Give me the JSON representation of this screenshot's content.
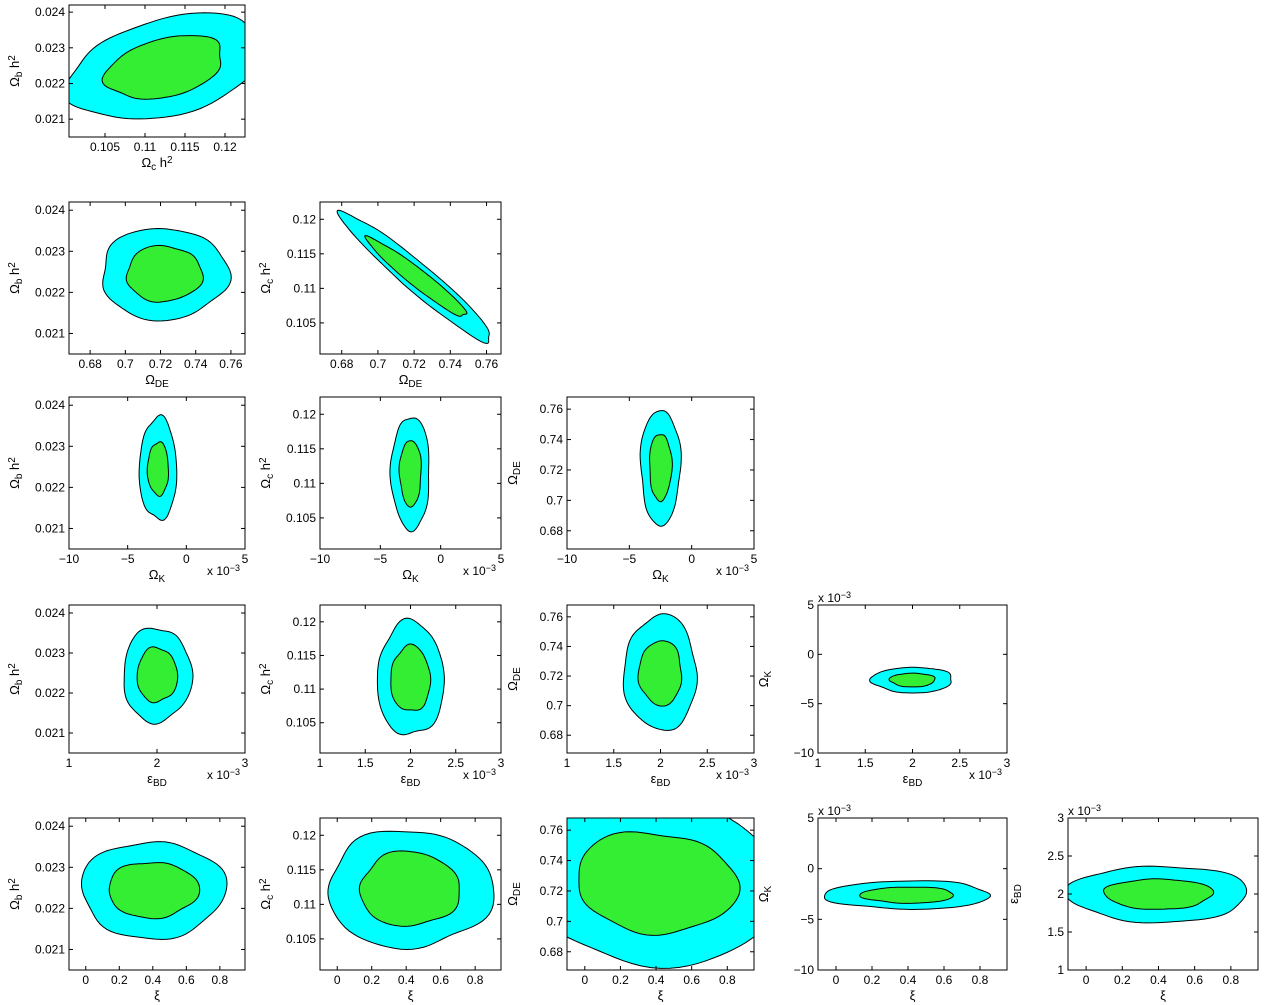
{
  "colors": {
    "outer": "#00ffff",
    "inner": "#33ee33",
    "stroke": "#000000",
    "background": "#ffffff"
  },
  "parameters": {
    "omega_b_h2": {
      "symbol": "Ω",
      "sub": "b",
      "sup": "2",
      "trail": " h",
      "range": [
        0.0205,
        0.0242
      ],
      "ticks": [
        0.021,
        0.022,
        0.023,
        0.024
      ],
      "tick_labels": [
        "0.021",
        "0.022",
        "0.023",
        "0.024"
      ]
    },
    "omega_c_h2": {
      "symbol": "Ω",
      "sub": "c",
      "sup": "2",
      "trail": " h",
      "range": [
        0.1005,
        0.1225
      ],
      "ticks": [
        0.105,
        0.11,
        0.115,
        0.12
      ],
      "tick_labels": [
        "0.105",
        "0.11",
        "0.115",
        "0.12"
      ]
    },
    "omega_de": {
      "symbol": "Ω",
      "sub": "DE",
      "sup": "",
      "trail": "",
      "range": [
        0.668,
        0.768
      ],
      "ticks": [
        0.68,
        0.7,
        0.72,
        0.74,
        0.76
      ],
      "tick_labels": [
        "0.68",
        "0.7",
        "0.72",
        "0.74",
        "0.76"
      ]
    },
    "omega_k": {
      "symbol": "Ω",
      "sub": "K",
      "sup": "",
      "trail": "",
      "range": [
        -0.01,
        0.005
      ],
      "ticks": [
        -0.01,
        -0.005,
        0,
        0.005
      ],
      "tick_labels": [
        "−10",
        "−5",
        "0",
        "5"
      ],
      "multiplier": "x 10",
      "multiplier_exp": "−3"
    },
    "eps_bd": {
      "symbol": "ε",
      "sub": "BD",
      "sup": "",
      "trail": "",
      "range": [
        0.001,
        0.003
      ],
      "ticks": [
        0.001,
        0.0015,
        0.002,
        0.0025,
        0.003
      ],
      "tick_labels": [
        "1",
        "1.5",
        "2",
        "2.5",
        "3"
      ],
      "tick_labels_short": [
        "1",
        "2",
        "3"
      ],
      "ticks_short": [
        0.001,
        0.002,
        0.003
      ],
      "multiplier": "x 10",
      "multiplier_exp": "−3"
    },
    "xi": {
      "symbol": "ξ",
      "sub": "",
      "sup": "",
      "trail": "",
      "range": [
        -0.1,
        0.95
      ],
      "ticks": [
        0,
        0.2,
        0.4,
        0.6,
        0.8
      ],
      "tick_labels": [
        "0",
        "0.2",
        "0.4",
        "0.6",
        "0.8"
      ]
    }
  },
  "chart_data": [
    {
      "type": "contour",
      "x": "omega_c_h2",
      "y": "omega_b_h2",
      "center": [
        0.1125,
        0.02245
      ],
      "outer_radii": [
        0.0085,
        0.00105
      ],
      "inner_radii": [
        0.0052,
        0.00063
      ],
      "correlation": 0.35
    },
    {
      "type": "contour",
      "x": "omega_de",
      "y": "omega_b_h2",
      "center": [
        0.722,
        0.02245
      ],
      "outer_radii": [
        0.036,
        0.00112
      ],
      "inner_radii": [
        0.0215,
        0.00068
      ],
      "correlation": 0.0
    },
    {
      "type": "contour",
      "x": "omega_de",
      "y": "omega_c_h2",
      "center": [
        0.722,
        0.1115
      ],
      "outer_radii": [
        0.038,
        0.0085
      ],
      "inner_radii": [
        0.025,
        0.0052
      ],
      "correlation": -0.96
    },
    {
      "type": "contour",
      "x": "omega_k",
      "y": "omega_b_h2",
      "center": [
        -0.0024,
        0.02245
      ],
      "outer_radii": [
        0.0016,
        0.00125
      ],
      "inner_radii": [
        0.0009,
        0.00065
      ],
      "correlation": 0.0
    },
    {
      "type": "contour",
      "x": "omega_k",
      "y": "omega_c_h2",
      "center": [
        -0.0025,
        0.1115
      ],
      "outer_radii": [
        0.0016,
        0.0082
      ],
      "inner_radii": [
        0.0009,
        0.0048
      ],
      "correlation": 0.0
    },
    {
      "type": "contour",
      "x": "omega_k",
      "y": "omega_de",
      "center": [
        -0.0025,
        0.722
      ],
      "outer_radii": [
        0.0016,
        0.038
      ],
      "inner_radii": [
        0.0009,
        0.022
      ],
      "correlation": 0.0
    },
    {
      "type": "contour",
      "x": "eps_bd",
      "y": "omega_b_h2",
      "center": [
        0.002,
        0.02245
      ],
      "outer_radii": [
        0.00039,
        0.00118
      ],
      "inner_radii": [
        0.00023,
        0.00068
      ],
      "correlation": 0.0
    },
    {
      "type": "contour",
      "x": "eps_bd",
      "y": "omega_c_h2",
      "center": [
        0.002,
        0.1115
      ],
      "outer_radii": [
        0.00037,
        0.0085
      ],
      "inner_radii": [
        0.00022,
        0.0049
      ],
      "correlation": 0.0
    },
    {
      "type": "contour",
      "x": "eps_bd",
      "y": "omega_de",
      "center": [
        0.002,
        0.722
      ],
      "outer_radii": [
        0.00039,
        0.039
      ],
      "inner_radii": [
        0.00023,
        0.022
      ],
      "correlation": 0.0
    },
    {
      "type": "contour",
      "x": "eps_bd",
      "y": "omega_k",
      "center": [
        0.002,
        -0.0026
      ],
      "outer_radii": [
        0.00043,
        0.0013
      ],
      "inner_radii": [
        0.00024,
        0.0007
      ],
      "correlation": 0.0
    },
    {
      "type": "contour",
      "x": "xi",
      "y": "omega_b_h2",
      "center": [
        0.4,
        0.02245
      ],
      "outer_radii": [
        0.43,
        0.00118
      ],
      "inner_radii": [
        0.27,
        0.00068
      ],
      "correlation": 0.0
    },
    {
      "type": "contour",
      "x": "xi",
      "y": "omega_c_h2",
      "center": [
        0.42,
        0.1122
      ],
      "outer_radii": [
        0.48,
        0.0085
      ],
      "inner_radii": [
        0.29,
        0.0054
      ],
      "correlation": 0.0
    },
    {
      "type": "contour",
      "x": "xi",
      "y": "omega_de",
      "center": [
        0.4,
        0.7255
      ],
      "outer_radii": [
        0.52,
        0.038
      ],
      "inner_radii": [
        0.32,
        0.0235
      ],
      "correlation": -0.1
    },
    {
      "type": "contour",
      "x": "xi",
      "y": "omega_k",
      "center": [
        0.4,
        -0.0026
      ],
      "outer_radii": [
        0.46,
        0.0014
      ],
      "inner_radii": [
        0.26,
        0.0008
      ],
      "correlation": 0.0
    },
    {
      "type": "contour",
      "x": "xi",
      "y": "eps_bd",
      "center": [
        0.4,
        0.002
      ],
      "outer_radii": [
        0.5,
        0.00037
      ],
      "inner_radii": [
        0.3,
        0.0002
      ],
      "correlation": 0.0
    }
  ]
}
